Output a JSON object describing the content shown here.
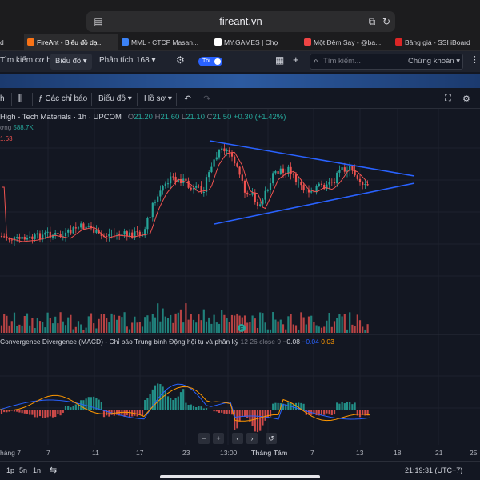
{
  "browser": {
    "url": "fireant.vn",
    "tabs": [
      {
        "label": "FireAnt - Biểu đồ dạ...",
        "color": "#f97316",
        "active": true
      },
      {
        "label": "MML - CTCP Masan...",
        "color": "#3b82f6",
        "active": false
      },
      {
        "label": "MY.GAMES | Chợ",
        "color": "#ffffff",
        "active": false
      },
      {
        "label": "Một Đêm Say - @ba...",
        "color": "#ef4444",
        "active": false
      },
      {
        "label": "Bảng giá - SSI iBoard",
        "color": "#dc2626",
        "active": false
      }
    ]
  },
  "app_toolbar": {
    "opportunity": "Tìm kiếm cơ hội",
    "chart_menu": "Biểu đồ",
    "analysis": "Phân tích",
    "analysis_value": "168",
    "dark_toggle": "Tối",
    "search_placeholder": "Tìm kiếm...",
    "search_scope": "Chứng khoán"
  },
  "chart_toolbar": {
    "interval": "h",
    "indicators": "Các chỉ báo",
    "chart_type": "Biểu đồ",
    "profile": "Hồ sơ"
  },
  "legend": {
    "title": "High - Tech Materials · 1h · UPCOM",
    "open_label": "O",
    "open": "21.20",
    "high_label": "H",
    "high": "21.60",
    "low_label": "L",
    "low": "21.10",
    "close_label": "C",
    "close": "21.50",
    "change": "+0.30 (+1.42%)",
    "volume_label": "ợng",
    "volume_value": "588.7K",
    "ma_value": "1.63"
  },
  "macd_legend": {
    "title": "Convergence Divergence (MACD) - Chỉ báo Trung bình Động hội tụ và phân kỳ",
    "params": "12 26 close 9",
    "v1": "−0.08",
    "v2": "−0.04",
    "v3": "0.03"
  },
  "x_axis_labels": [
    "háng 7",
    "7",
    "11",
    "17",
    "23",
    "13:00",
    "Tháng Tám",
    "7",
    "13",
    "18",
    "21",
    "25"
  ],
  "bottom_bar": {
    "ranges": [
      "1p",
      "5n",
      "1n"
    ],
    "clock": "21:19:31 (UTC+7)"
  },
  "nav_buttons": [
    "−",
    "+",
    "‹",
    "›",
    "↺"
  ],
  "colors": {
    "up": "#26a69a",
    "down": "#ef5350",
    "ma": "#ef5350",
    "trendline": "#2962ff",
    "macd": "#2962ff",
    "signal": "#ff9800",
    "background": "#131722"
  }
}
